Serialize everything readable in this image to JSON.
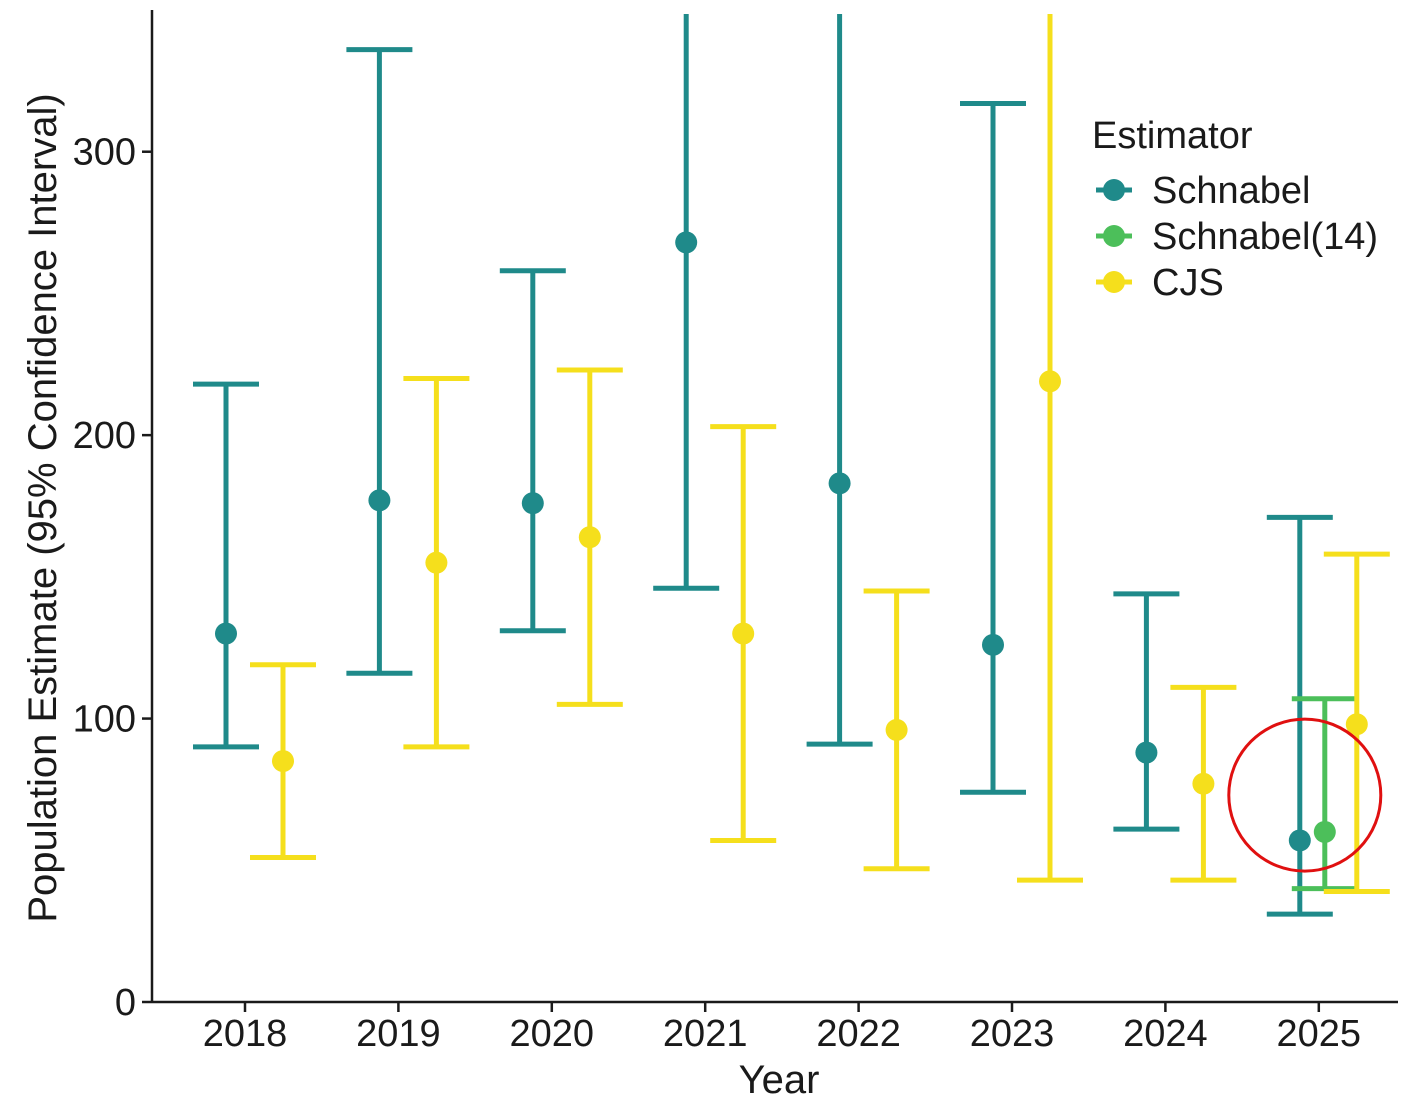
{
  "chart_data": {
    "type": "scatter",
    "subtype": "point-errorbar",
    "xlabel": "Year",
    "ylabel": "Population Estimate (95% Confidence Interval)",
    "categories": [
      "2018",
      "2019",
      "2020",
      "2021",
      "2022",
      "2023",
      "2024",
      "2025"
    ],
    "ylim": [
      0,
      350
    ],
    "yticks": [
      0,
      100,
      200,
      300
    ],
    "grid": false,
    "legend": {
      "title": "Estimator",
      "position": "top-right"
    },
    "series": [
      {
        "name": "Schnabel",
        "color": "#1f8a8a",
        "points": [
          {
            "x": "2018",
            "y": 130,
            "lo": 90,
            "hi": 218
          },
          {
            "x": "2019",
            "y": 177,
            "lo": 116,
            "hi": 336
          },
          {
            "x": "2020",
            "y": 176,
            "lo": 131,
            "hi": 258
          },
          {
            "x": "2021",
            "y": 268,
            "lo": 146,
            "hi": 350
          },
          {
            "x": "2022",
            "y": 183,
            "lo": 91,
            "hi": 350
          },
          {
            "x": "2023",
            "y": 126,
            "lo": 74,
            "hi": 317
          },
          {
            "x": "2024",
            "y": 88,
            "lo": 61,
            "hi": 144
          },
          {
            "x": "2025",
            "y": 57,
            "lo": 31,
            "hi": 171
          }
        ]
      },
      {
        "name": "Schnabel(14)",
        "color": "#4cbf5a",
        "points": [
          {
            "x": "2025",
            "y": 60,
            "lo": 40,
            "hi": 107
          }
        ]
      },
      {
        "name": "CJS",
        "color": "#f5df1c",
        "points": [
          {
            "x": "2018",
            "y": 85,
            "lo": 51,
            "hi": 119
          },
          {
            "x": "2019",
            "y": 155,
            "lo": 90,
            "hi": 220
          },
          {
            "x": "2020",
            "y": 164,
            "lo": 105,
            "hi": 223
          },
          {
            "x": "2021",
            "y": 130,
            "lo": 57,
            "hi": 203
          },
          {
            "x": "2022",
            "y": 96,
            "lo": 47,
            "hi": 145
          },
          {
            "x": "2023",
            "y": 219,
            "lo": 43,
            "hi": 350
          },
          {
            "x": "2024",
            "y": 77,
            "lo": 43,
            "hi": 111
          },
          {
            "x": "2025",
            "y": 98,
            "lo": 39,
            "hi": 158
          }
        ]
      }
    ],
    "annotations": [
      {
        "type": "circle",
        "color": "#e01010",
        "x": "2025",
        "y": 73
      }
    ]
  }
}
